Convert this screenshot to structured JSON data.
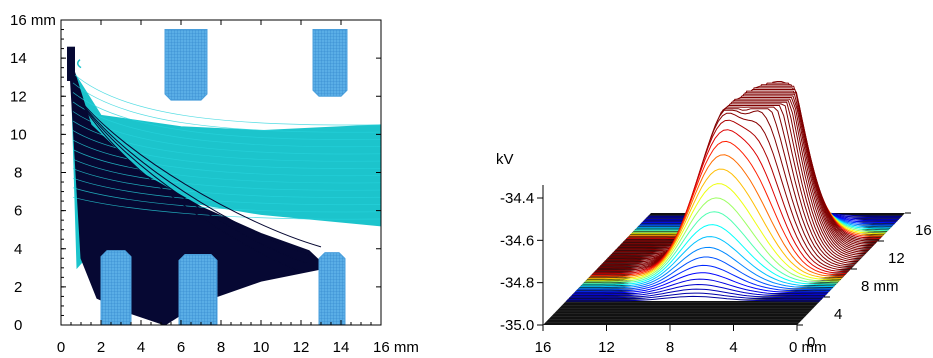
{
  "chart_data": [
    {
      "type": "scatter",
      "subtype": "particle-trajectory plot",
      "title": "",
      "xlabel": "",
      "ylabel": "",
      "x_unit": "mm",
      "y_unit": "mm",
      "xlim": [
        0,
        16
      ],
      "ylim": [
        0,
        16
      ],
      "x_ticks": [
        "0",
        "2",
        "4",
        "6",
        "8",
        "10",
        "12",
        "14",
        "16 mm"
      ],
      "y_ticks": [
        "0",
        "2",
        "4",
        "6",
        "8",
        "10",
        "12",
        "14",
        "16 mm"
      ],
      "grid": false,
      "electrodes": [
        {
          "name": "upper-left",
          "x": [
            5.2,
            7.3
          ],
          "y": [
            11.8,
            15.5
          ],
          "color": "#4a9fdc"
        },
        {
          "name": "upper-right",
          "x": [
            12.6,
            14.3
          ],
          "y": [
            12.0,
            15.5
          ],
          "color": "#4a9fdc"
        },
        {
          "name": "lower-left",
          "x": [
            2.0,
            3.5
          ],
          "y": [
            0.0,
            3.9
          ],
          "color": "#4a9fdc"
        },
        {
          "name": "lower-middle",
          "x": [
            5.9,
            7.8
          ],
          "y": [
            0.0,
            3.7
          ],
          "color": "#4a9fdc"
        },
        {
          "name": "lower-right",
          "x": [
            12.9,
            14.2
          ],
          "y": [
            0.0,
            3.8
          ],
          "color": "#4a9fdc"
        }
      ],
      "series": [
        {
          "color": "#1cc4cc",
          "points": [
            [
              0.5,
              13.5
            ],
            [
              2.0,
              11.0
            ],
            [
              6.0,
              10.4
            ],
            [
              10.0,
              10.2
            ],
            [
              16.0,
              10.5
            ],
            [
              16.0,
              5.2
            ],
            [
              10.0,
              5.8
            ],
            [
              6.0,
              6.5
            ],
            [
              2.5,
              5.0
            ],
            [
              0.8,
              3.0
            ]
          ]
        },
        {
          "color": "#060833",
          "points": [
            [
              0.4,
              14.2
            ],
            [
              1.5,
              10.5
            ],
            [
              4.0,
              8.0
            ],
            [
              7.0,
              6.2
            ],
            [
              10.0,
              4.8
            ],
            [
              12.4,
              3.9
            ],
            [
              13.3,
              3.0
            ],
            [
              10.0,
              2.3
            ],
            [
              7.0,
              1.2
            ],
            [
              5.2,
              0.0
            ],
            [
              3.5,
              0.6
            ],
            [
              1.8,
              1.4
            ],
            [
              1.0,
              3.5
            ]
          ]
        }
      ]
    },
    {
      "type": "surface3d",
      "title": "",
      "z_unit_label": "kV",
      "z_ticks": [
        "-34.4",
        "-34.6",
        "-34.8",
        "-35.0"
      ],
      "zlim": [
        -35.0,
        -34.4
      ],
      "x_ticks": [
        "16",
        "12",
        "8",
        "4",
        "0 mm"
      ],
      "y_ticks": [
        "0",
        "4",
        "8 mm",
        "12",
        "16"
      ],
      "xlim": [
        16,
        0
      ],
      "ylim": [
        0,
        16
      ],
      "colormap": "jet",
      "peaks_kV": [
        -34.33,
        -34.27,
        -34.31
      ],
      "floor_color": "#111111"
    }
  ]
}
